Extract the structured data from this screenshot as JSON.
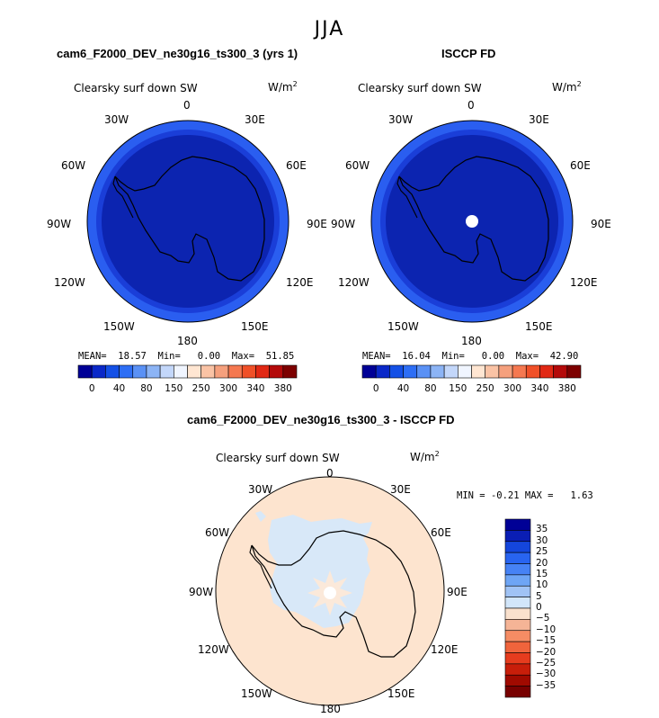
{
  "main_title": "JJA",
  "units_base": "W/m",
  "units_exp": "2",
  "panels": [
    {
      "title": "cam6_F2000_DEV_ne30g16_ts300_3 (yrs 1)",
      "field": "Clearsky surf down SW",
      "stats": {
        "mean_label": "MEAN=",
        "mean": "18.57",
        "min_label": "Min=",
        "min": "0.00",
        "max_label": "Max=",
        "max": "51.85"
      },
      "pole_hole": false
    },
    {
      "title": "ISCCP FD",
      "field": "Clearsky surf down SW",
      "stats": {
        "mean_label": "MEAN=",
        "mean": "16.04",
        "min_label": "Min=",
        "min": "0.00",
        "max_label": "Max=",
        "max": "42.90"
      },
      "pole_hole": true
    }
  ],
  "diff_panel": {
    "title": "cam6_F2000_DEV_ne30g16_ts300_3 - ISCCP FD",
    "field": "Clearsky surf down SW",
    "stats": {
      "min_label": "MIN =",
      "min": "-0.21",
      "max_label": "MAX =",
      "max": "1.63"
    }
  },
  "longitude_labels": {
    "lon_0": "0",
    "lon_30e": "30E",
    "lon_60e": "60E",
    "lon_90e": "90E",
    "lon_120e": "120E",
    "lon_150e": "150E",
    "lon_180": "180",
    "lon_150w": "150W",
    "lon_120w": "120W",
    "lon_90w": "90W",
    "lon_60w": "60W",
    "lon_30w": "30W"
  },
  "abs_colorbar": {
    "colors": [
      "#000096",
      "#0a28c8",
      "#1450e6",
      "#2d6ef5",
      "#5a91f5",
      "#8cb4f5",
      "#c3d7fa",
      "#f0f5ff",
      "#ffe6d2",
      "#fac3a5",
      "#f5a07d",
      "#f57850",
      "#f05028",
      "#e12814",
      "#b40a0a",
      "#7d0000"
    ],
    "labels": [
      "0",
      "40",
      "80",
      "150",
      "250",
      "300",
      "340",
      "380"
    ]
  },
  "diff_colorbar": {
    "colors": [
      "#000096",
      "#0a1eb4",
      "#1446dc",
      "#2864f0",
      "#4682f5",
      "#6ea5f5",
      "#a0c3f5",
      "#d2e6fa",
      "#fae1cd",
      "#f5b496",
      "#f58c64",
      "#f0643c",
      "#e63c1e",
      "#c81e0a",
      "#a00a00",
      "#780000"
    ],
    "labels": [
      "35",
      "30",
      "25",
      "20",
      "15",
      "10",
      "5",
      "0",
      "−5",
      "−10",
      "−15",
      "−20",
      "−25",
      "−30",
      "−35"
    ]
  },
  "colors": {
    "abs_outer_ring": "#2a5ef0",
    "abs_middle_ring": "#1a3ed8",
    "abs_inner_disk": "#0c24b0",
    "diff_background": "#fde4cf",
    "diff_negative": "#d8e8f8"
  }
}
